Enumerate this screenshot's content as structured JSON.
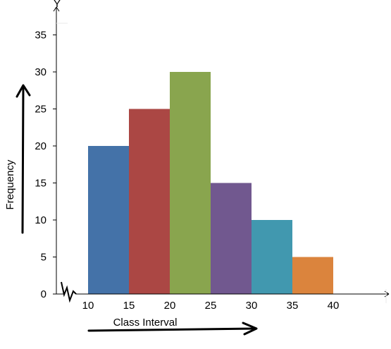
{
  "chart_data": {
    "type": "bar",
    "title": "",
    "subtitle": "",
    "xlabel": "Class Interval",
    "ylabel": "Frequency",
    "y_axis_marker": "Y",
    "bins": [
      {
        "from": 10,
        "to": 15,
        "value": 20,
        "color": "#4472a8"
      },
      {
        "from": 15,
        "to": 20,
        "value": 25,
        "color": "#ab4744"
      },
      {
        "from": 20,
        "to": 25,
        "value": 30,
        "color": "#89a54e"
      },
      {
        "from": 25,
        "to": 30,
        "value": 15,
        "color": "#71588f"
      },
      {
        "from": 30,
        "to": 35,
        "value": 10,
        "color": "#4198af"
      },
      {
        "from": 35,
        "to": 40,
        "value": 5,
        "color": "#db843d"
      }
    ],
    "x_ticks": [
      "10",
      "15",
      "20",
      "25",
      "30",
      "35",
      "40"
    ],
    "y_ticks": [
      "0",
      "5",
      "10",
      "15",
      "20",
      "25",
      "30",
      "35"
    ],
    "xlim": [
      10,
      45
    ],
    "ylim": [
      0,
      35
    ],
    "grid": false,
    "legend": "none",
    "axis_break": "broken axis symbol near origin",
    "annotations": [
      "hand-drawn arrow along x-axis title",
      "hand-drawn arrow along y-axis title"
    ]
  }
}
